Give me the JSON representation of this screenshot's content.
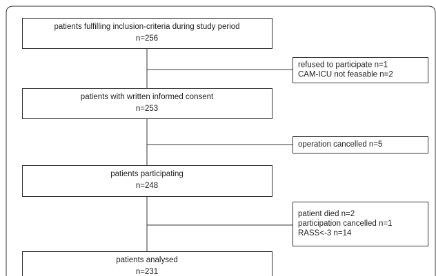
{
  "nodes": [
    {
      "lines": [
        "patients fulfilling inclusion-criteria during study period",
        "n=256"
      ]
    },
    {
      "lines": [
        "refused to participate n=1",
        "CAM-ICU not feasable n=2"
      ]
    },
    {
      "lines": [
        "patients with written informed consent",
        "n=253"
      ]
    },
    {
      "lines": [
        "operation cancelled n=5"
      ]
    },
    {
      "lines": [
        "patients participating",
        "n=248"
      ]
    },
    {
      "lines": [
        "patient died n=2",
        "participation cancelled n=1",
        "RASS<-3 n=14"
      ]
    },
    {
      "lines": [
        "patients analysed",
        "n=231"
      ]
    }
  ]
}
